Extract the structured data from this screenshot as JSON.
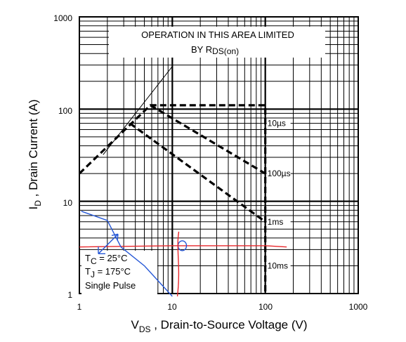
{
  "chart_data": {
    "type": "line",
    "xscale": "log",
    "yscale": "log",
    "xlim": [
      1,
      1000
    ],
    "ylim": [
      1,
      1000
    ],
    "grid": true,
    "x_ticks": [
      "1",
      "10",
      "100",
      "1000"
    ],
    "y_ticks": [
      "1",
      "10",
      "100",
      "1000"
    ],
    "xlabel": {
      "main": "V",
      "sub": "DS",
      "rest": " , Drain-to-Source Voltage (V)"
    },
    "ylabel": {
      "main": "I",
      "sub": "D",
      "rest": " , Drain Current (A)"
    },
    "annotation": {
      "line1": "OPERATION IN THIS AREA LIMITED",
      "line2": "BY R",
      "line2_sub": "DS(on)"
    },
    "conditions": {
      "tc": {
        "main": "T",
        "sub": "C",
        "rest": "  = 25°C"
      },
      "tj": {
        "main": "T",
        "sub": "J",
        "rest": "  = 175°C"
      },
      "pulse": "Single Pulse"
    },
    "series": [
      {
        "name": "10µs",
        "x": [
          1,
          5.8,
          20,
          100,
          100
        ],
        "y": [
          20,
          110,
          110,
          110,
          1
        ]
      },
      {
        "name": "100µs",
        "x": [
          5.8,
          100
        ],
        "y": [
          110,
          20
        ]
      },
      {
        "name": "1ms",
        "x": [
          3.5,
          100
        ],
        "y": [
          70,
          6
        ]
      },
      {
        "name": "10ms",
        "x": [
          100
        ],
        "y": [
          2
        ]
      }
    ],
    "limit_line": {
      "x": [
        1.8,
        10
      ],
      "y": [
        32,
        290
      ]
    },
    "handwriting": {
      "red": {
        "x": [
          1,
          10,
          100,
          170
        ],
        "y": [
          3.2,
          3.3,
          3.3,
          3.2
        ]
      },
      "blue": {
        "x": [
          1.05,
          2.0,
          2.8,
          5,
          10
        ],
        "y": [
          7.8,
          6.2,
          3.2,
          2.0,
          0.8
        ]
      }
    },
    "colors": {
      "line": "#000000",
      "red_ink": "#e8262a",
      "blue_ink": "#2557d6",
      "grid": "#000000"
    }
  }
}
